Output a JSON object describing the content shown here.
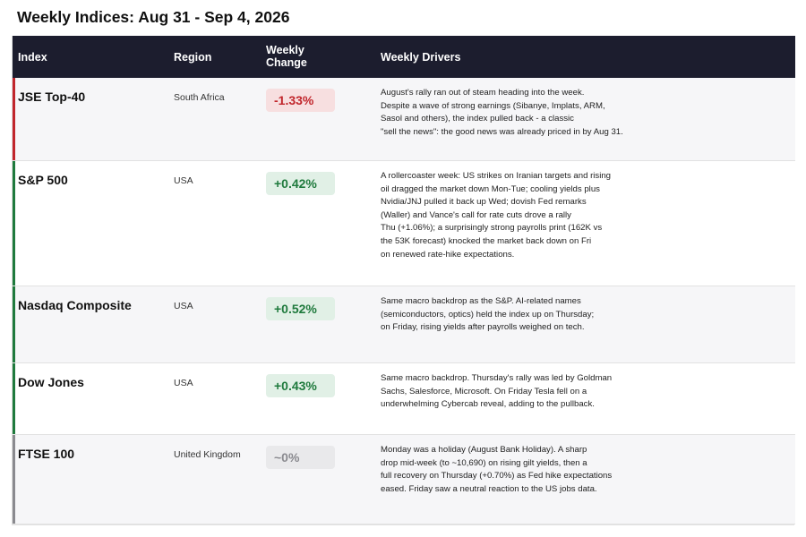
{
  "page": {
    "title": "Weekly Indices: Aug 31 - Sep 4, 2026"
  },
  "table": {
    "headers": {
      "index": "Index",
      "region": "Region",
      "change_line1": "Weekly",
      "change_line2": "Change",
      "drivers": "Weekly Drivers"
    },
    "rows": [
      {
        "name": "JSE Top-40",
        "region": "South Africa",
        "change": "-1.33%",
        "direction": "negative",
        "accent_color": "#c1262c",
        "drivers": [
          "August's rally ran out of steam heading into the week.",
          "Despite a wave of strong earnings (Sibanye, Implats, ARM,",
          "Sasol and others), the index pulled back - a classic",
          "\"sell the news\": the good news was already priced in by Aug 31."
        ]
      },
      {
        "name": "S&P 500",
        "region": "USA",
        "change": "+0.42%",
        "direction": "positive",
        "accent_color": "#1f7a3d",
        "drivers": [
          "A rollercoaster week: US strikes on Iranian targets and rising",
          "oil dragged the market down Mon-Tue; cooling yields plus",
          "Nvidia/JNJ pulled it back up Wed; dovish Fed remarks",
          "(Waller) and Vance's call for rate cuts drove a rally",
          "Thu (+1.06%); a surprisingly strong payrolls print (162K vs",
          "the 53K forecast) knocked the market back down on Fri",
          "on renewed rate-hike expectations."
        ]
      },
      {
        "name": "Nasdaq Composite",
        "region": "USA",
        "change": "+0.52%",
        "direction": "positive",
        "accent_color": "#1f7a3d",
        "drivers": [
          "Same macro backdrop as the S&P. AI-related names",
          "(semiconductors, optics) held the index up on Thursday;",
          "on Friday, rising yields after payrolls weighed on tech."
        ]
      },
      {
        "name": "Dow Jones",
        "region": "USA",
        "change": "+0.43%",
        "direction": "positive",
        "accent_color": "#1f7a3d",
        "drivers": [
          "Same macro backdrop. Thursday's rally was led by Goldman",
          "Sachs, Salesforce, Microsoft. On Friday Tesla fell on a",
          "underwhelming Cybercab reveal, adding to the pullback."
        ]
      },
      {
        "name": "FTSE 100",
        "region": "United Kingdom",
        "change": "~0%",
        "direction": "flat",
        "accent_color": "#8a8a8f",
        "drivers": [
          "Monday was a holiday (August Bank Holiday). A sharp",
          "drop mid-week (to ~10,690) on rising gilt yields, then a",
          "full recovery on Thursday (+0.70%) as Fed hike expectations",
          "eased. Friday saw a neutral reaction to the US jobs data."
        ]
      }
    ]
  }
}
